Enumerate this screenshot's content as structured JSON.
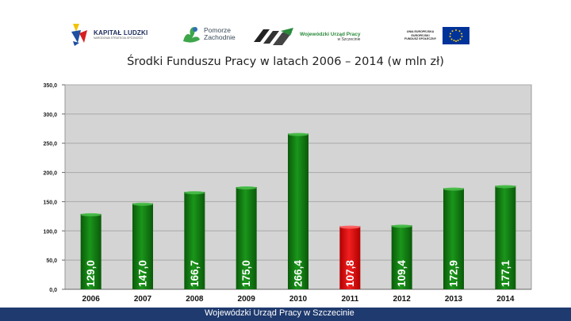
{
  "logos": {
    "kapital_ludzki": {
      "name": "KAPITAŁ LUDZKI",
      "subtitle": "NARODOWA STRATEGIA SPÓJNOŚCI"
    },
    "pomorze": {
      "line1": "Pomorze",
      "line2": "Zachodnie"
    },
    "wup": {
      "name": "Wojewódzki Urząd Pracy",
      "city": "w Szczecinie"
    },
    "ue": {
      "line1": "UNIA EUROPEJSKA",
      "line2": "EUROPEJSKI",
      "line3": "FUNDUSZ SPOŁECZNY"
    }
  },
  "footer": {
    "text": "Wojewódzki Urząd Pracy w Szczecinie"
  },
  "colors": {
    "bar_default": "#0f7a0f",
    "bar_highlight": "#e01414",
    "plot_bg": "#d4d4d4",
    "footer_bg": "#1f3a6e"
  },
  "chart_data": {
    "type": "bar",
    "title": "Środki Funduszu Pracy w latach 2006 – 2014 (w mln zł)",
    "categories": [
      "2006",
      "2007",
      "2008",
      "2009",
      "2010",
      "2011",
      "2012",
      "2013",
      "2014"
    ],
    "values": [
      129.0,
      147.0,
      166.7,
      175.0,
      266.4,
      107.8,
      109.4,
      172.9,
      177.1
    ],
    "data_labels": [
      "129,0",
      "147,0",
      "166,7",
      "175,0",
      "266,4",
      "107,8",
      "109,4",
      "172,9",
      "177,1"
    ],
    "highlight_category": "2011",
    "ylim": [
      0,
      350
    ],
    "yticks": [
      0,
      50,
      100,
      150,
      200,
      250,
      300,
      350
    ],
    "ytick_labels": [
      "0,0",
      "50,0",
      "100,0",
      "150,0",
      "200,0",
      "250,0",
      "300,0",
      "350,0"
    ],
    "grid": true,
    "legend": "none",
    "xlabel": "",
    "ylabel": ""
  }
}
